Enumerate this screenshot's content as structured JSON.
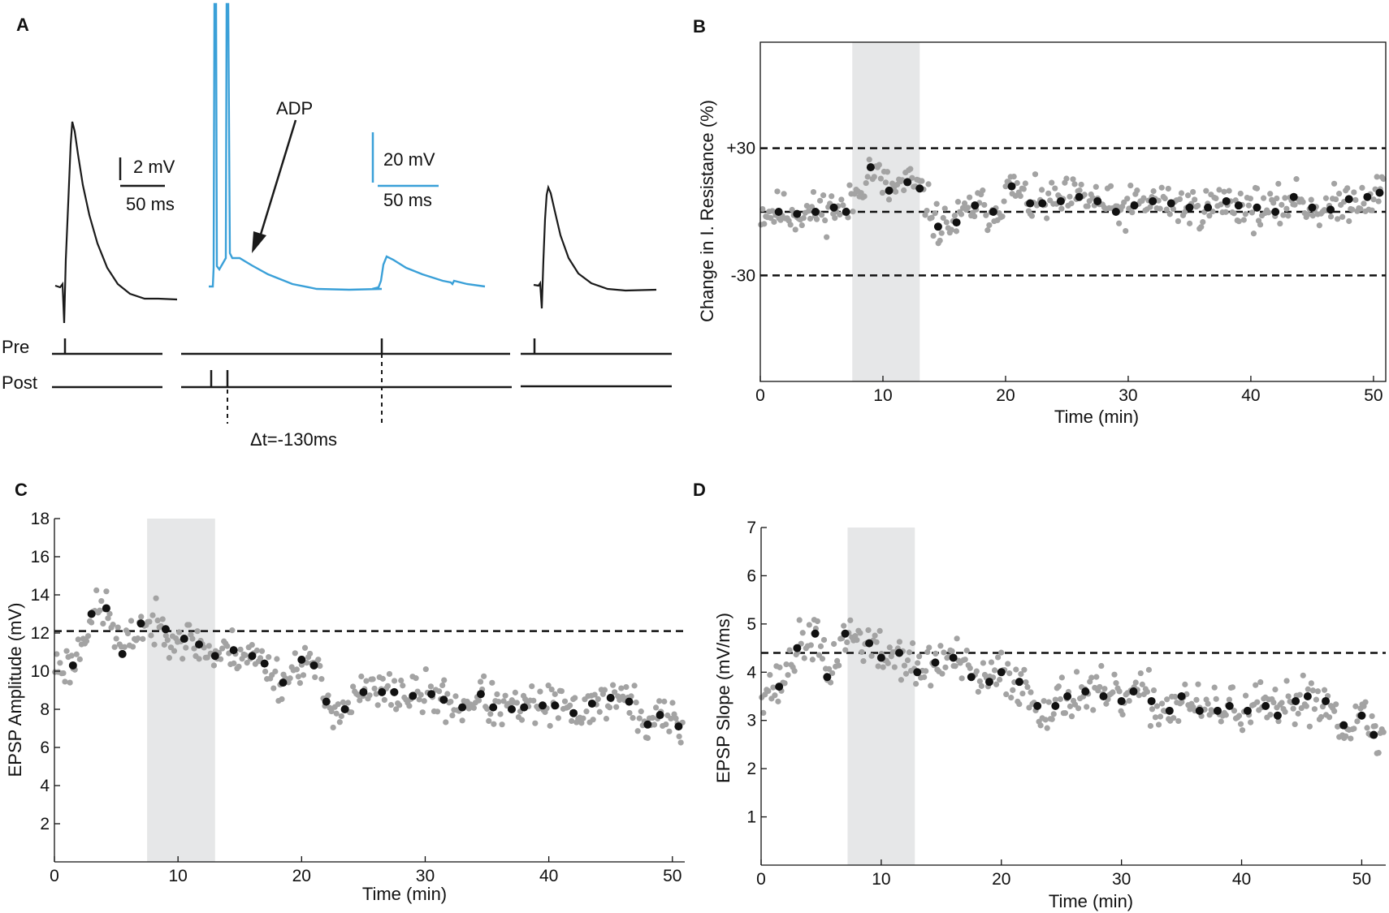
{
  "panels": {
    "a": {
      "label": "A",
      "scale_black_mv": "2 mV",
      "scale_black_ms": "50 ms",
      "scale_blue_mv": "20 mV",
      "scale_blue_ms": "50 ms",
      "adp_label": "ADP",
      "pre_label": "Pre",
      "post_label": "Post",
      "delta_t_label": "Δt=-130ms",
      "trace_colors": {
        "black": "#1a1a1a",
        "blue": "#3aa0d8"
      }
    }
  },
  "colors": {
    "shade": "#e6e7e8",
    "grey_point": "#a3a3a3",
    "black_point": "#111111"
  },
  "chart_data": [
    {
      "id": "b",
      "panel_label": "B",
      "type": "scatter",
      "xlabel": "Time (min)",
      "ylabel": "Change in I. Resistance (%)",
      "xlim": [
        0,
        51
      ],
      "ylim": [
        -80,
        80
      ],
      "xticks": [
        0,
        10,
        20,
        30,
        40,
        50
      ],
      "yticks": [
        {
          "value": 30,
          "label": "+30"
        },
        {
          "value": -30,
          "label": "-30"
        }
      ],
      "hlines": [
        30,
        0,
        -30
      ],
      "shade": [
        7.5,
        13
      ],
      "mean_points": [
        [
          1.5,
          0
        ],
        [
          3,
          -1
        ],
        [
          4.5,
          0
        ],
        [
          6,
          2
        ],
        [
          7,
          0
        ],
        [
          9,
          21
        ],
        [
          10.5,
          10
        ],
        [
          12,
          14
        ],
        [
          13,
          11
        ],
        [
          14.5,
          -7
        ],
        [
          16,
          -5
        ],
        [
          17.5,
          3
        ],
        [
          19,
          0
        ],
        [
          20.5,
          12
        ],
        [
          22,
          4
        ],
        [
          23,
          4
        ],
        [
          24.5,
          5
        ],
        [
          26,
          7
        ],
        [
          27.5,
          5
        ],
        [
          29,
          0
        ],
        [
          30.5,
          3
        ],
        [
          32,
          5
        ],
        [
          33.5,
          4
        ],
        [
          35,
          2
        ],
        [
          36.5,
          2
        ],
        [
          38,
          5
        ],
        [
          39,
          3
        ],
        [
          40.5,
          2
        ],
        [
          42,
          0
        ],
        [
          43.5,
          7
        ],
        [
          45,
          2
        ],
        [
          46.5,
          1
        ],
        [
          48,
          6
        ],
        [
          49.5,
          7
        ],
        [
          50.5,
          9
        ]
      ],
      "seed": 11,
      "noise_sd": 8
    },
    {
      "id": "c",
      "panel_label": "C",
      "type": "scatter",
      "xlabel": "Time (min)",
      "ylabel": "EPSP Amplitude (mV)",
      "xlim": [
        0,
        51
      ],
      "ylim": [
        0,
        18
      ],
      "xticks": [
        0,
        10,
        20,
        30,
        40,
        50
      ],
      "yticks": [
        {
          "value": 2,
          "label": "2"
        },
        {
          "value": 4,
          "label": "4"
        },
        {
          "value": 6,
          "label": "6"
        },
        {
          "value": 8,
          "label": "8"
        },
        {
          "value": 10,
          "label": "10"
        },
        {
          "value": 12,
          "label": "12"
        },
        {
          "value": 14,
          "label": "14"
        },
        {
          "value": 16,
          "label": "16"
        },
        {
          "value": 18,
          "label": "18"
        }
      ],
      "hlines": [
        12.1
      ],
      "shade": [
        7.5,
        13
      ],
      "mean_points": [
        [
          1.5,
          10.3
        ],
        [
          3,
          13
        ],
        [
          4.2,
          13.3
        ],
        [
          5.5,
          10.9
        ],
        [
          7,
          12.5
        ],
        [
          9,
          12.2
        ],
        [
          10.5,
          11.7
        ],
        [
          11.7,
          11.4
        ],
        [
          13,
          10.8
        ],
        [
          14.5,
          11.1
        ],
        [
          16,
          10.8
        ],
        [
          17,
          10.4
        ],
        [
          18.5,
          9.4
        ],
        [
          20,
          10.6
        ],
        [
          21,
          10.3
        ],
        [
          22,
          8.4
        ],
        [
          23.5,
          8
        ],
        [
          25,
          8.9
        ],
        [
          26.5,
          8.9
        ],
        [
          27.5,
          8.9
        ],
        [
          29,
          8.7
        ],
        [
          30.5,
          8.8
        ],
        [
          31.5,
          8.5
        ],
        [
          33,
          8.1
        ],
        [
          34.5,
          8.8
        ],
        [
          35.5,
          8.1
        ],
        [
          37,
          8
        ],
        [
          38,
          8.1
        ],
        [
          39.5,
          8.2
        ],
        [
          40.5,
          8.2
        ],
        [
          42,
          7.8
        ],
        [
          43.5,
          8.3
        ],
        [
          45,
          8.6
        ],
        [
          46.5,
          8.4
        ],
        [
          48,
          7.2
        ],
        [
          49,
          7.7
        ],
        [
          50.5,
          7.1
        ]
      ],
      "seed": 23,
      "noise_sd": 0.9
    },
    {
      "id": "d",
      "panel_label": "D",
      "type": "scatter",
      "xlabel": "Time (min)",
      "ylabel": "EPSP Slope (mV/ms)",
      "xlim": [
        0,
        52
      ],
      "ylim": [
        0,
        7
      ],
      "xticks": [
        0,
        10,
        20,
        30,
        40,
        50
      ],
      "yticks": [
        {
          "value": 1,
          "label": "1"
        },
        {
          "value": 2,
          "label": "2"
        },
        {
          "value": 3,
          "label": "3"
        },
        {
          "value": 4,
          "label": "4"
        },
        {
          "value": 5,
          "label": "5"
        },
        {
          "value": 6,
          "label": "6"
        },
        {
          "value": 7,
          "label": "7"
        }
      ],
      "hlines": [
        4.4
      ],
      "shade": [
        7.2,
        12.8
      ],
      "mean_points": [
        [
          1.5,
          3.7
        ],
        [
          3,
          4.5
        ],
        [
          4.5,
          4.8
        ],
        [
          5.5,
          3.9
        ],
        [
          7,
          4.8
        ],
        [
          9,
          4.6
        ],
        [
          10,
          4.3
        ],
        [
          11.5,
          4.4
        ],
        [
          13,
          4
        ],
        [
          14.5,
          4.2
        ],
        [
          16,
          4.3
        ],
        [
          17.5,
          3.9
        ],
        [
          19,
          3.8
        ],
        [
          20,
          4
        ],
        [
          21.5,
          3.8
        ],
        [
          23,
          3.3
        ],
        [
          24.5,
          3.3
        ],
        [
          25.5,
          3.5
        ],
        [
          27,
          3.6
        ],
        [
          28.5,
          3.5
        ],
        [
          30,
          3.4
        ],
        [
          31,
          3.6
        ],
        [
          32.5,
          3.4
        ],
        [
          34,
          3.2
        ],
        [
          35,
          3.5
        ],
        [
          36.5,
          3.2
        ],
        [
          38,
          3.2
        ],
        [
          39,
          3.3
        ],
        [
          40.5,
          3.2
        ],
        [
          42,
          3.3
        ],
        [
          43,
          3.1
        ],
        [
          44.5,
          3.4
        ],
        [
          45.5,
          3.5
        ],
        [
          47,
          3.4
        ],
        [
          48.5,
          2.9
        ],
        [
          50,
          3.1
        ],
        [
          51,
          2.7
        ]
      ],
      "seed": 37,
      "noise_sd": 0.4
    }
  ]
}
